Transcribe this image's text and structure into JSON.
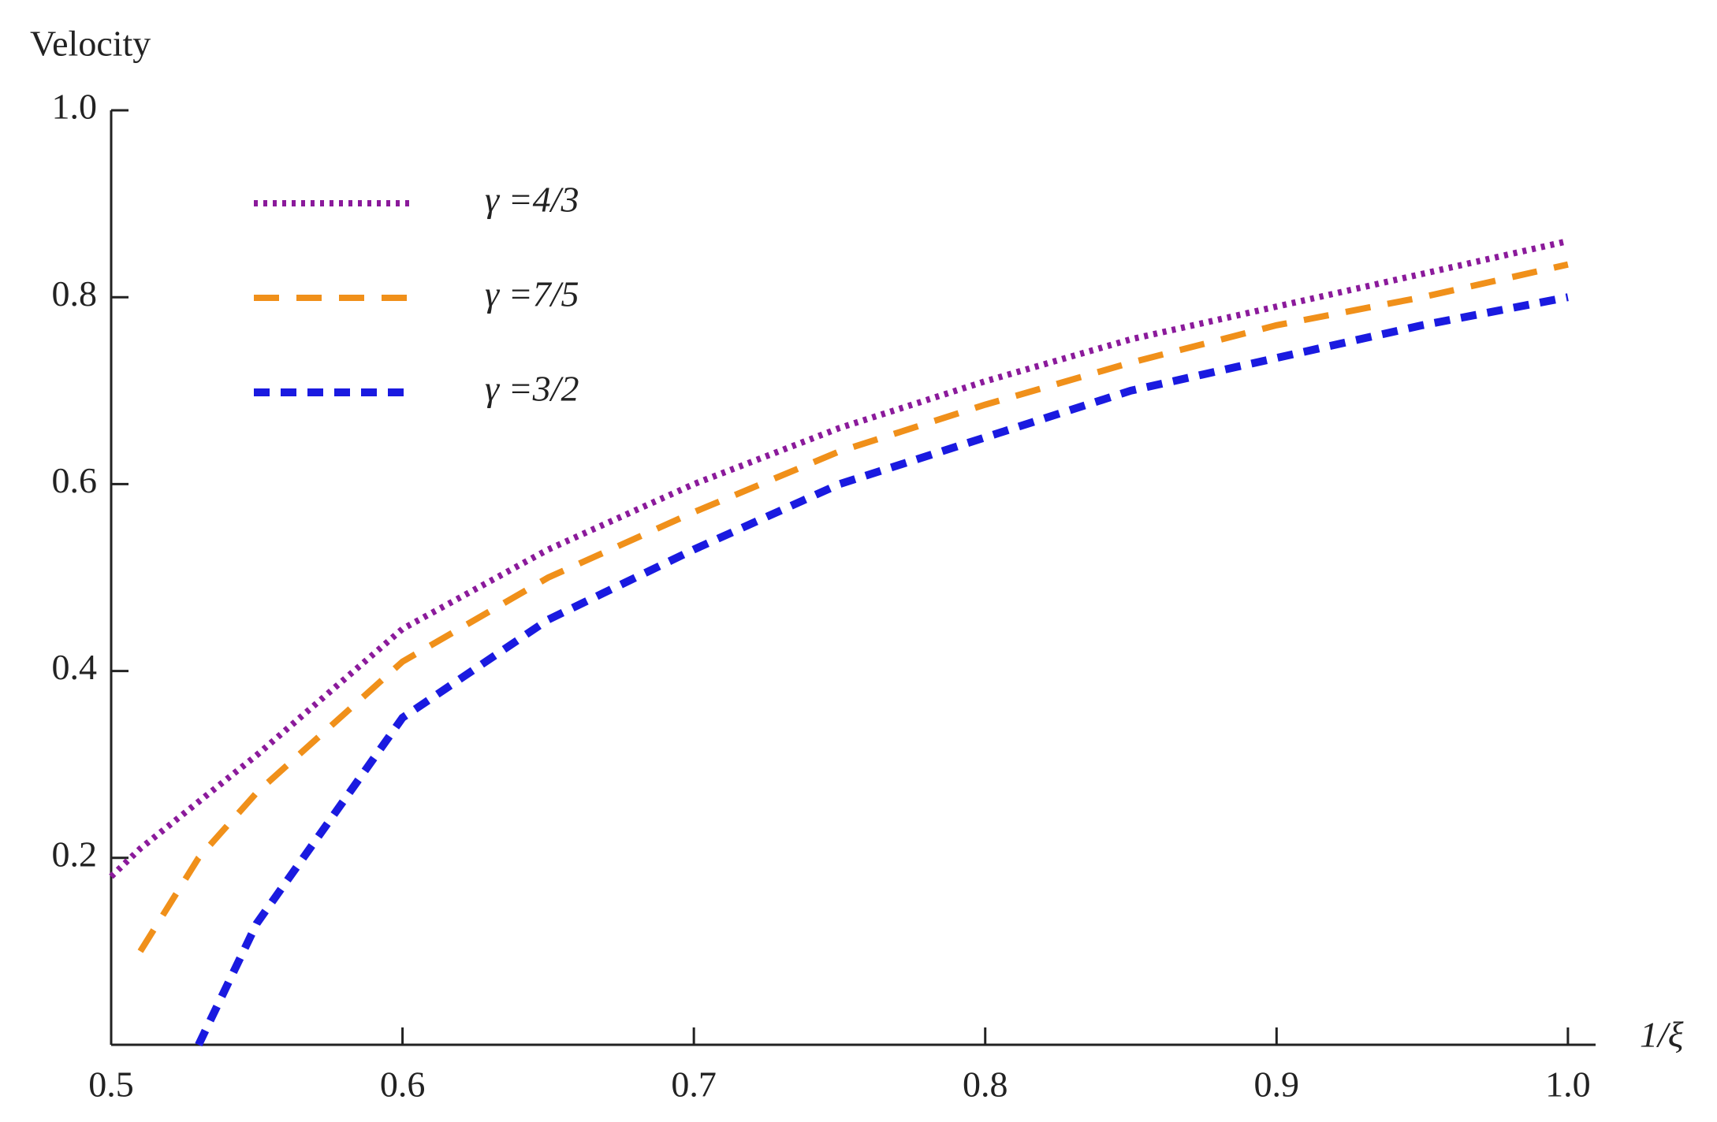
{
  "chart_data": {
    "type": "line",
    "ylabel": "Velocity",
    "xlabel": "1/ξ",
    "x": [
      0.5,
      0.51,
      0.52,
      0.53,
      0.55,
      0.6,
      0.65,
      0.7,
      0.75,
      0.8,
      0.85,
      0.9,
      0.95,
      1.0
    ],
    "series": [
      {
        "name": "γ =4/3",
        "color": "#8b1a9b",
        "dash": "dotted",
        "values": [
          0.18,
          0.21,
          0.235,
          0.26,
          0.31,
          0.445,
          0.53,
          0.6,
          0.66,
          0.71,
          0.755,
          0.79,
          0.825,
          0.86
        ]
      },
      {
        "name": "γ =7/5",
        "color": "#f0901a",
        "dash": "long",
        "values": [
          null,
          0.1,
          0.15,
          0.2,
          0.27,
          0.41,
          0.5,
          0.57,
          0.635,
          0.685,
          0.73,
          0.77,
          0.8,
          0.835
        ]
      },
      {
        "name": "γ =3/2",
        "color": "#1a1ae0",
        "dash": "short",
        "values": [
          null,
          null,
          null,
          0,
          0.13,
          0.35,
          0.455,
          0.53,
          0.6,
          0.65,
          0.7,
          0.735,
          0.77,
          0.8
        ]
      }
    ],
    "xlim": [
      0.5,
      1.0095
    ],
    "ylim": [
      0,
      1
    ],
    "xticks": [
      0.5,
      0.6,
      0.7,
      0.8,
      0.9,
      {
        "value": 1,
        "label": "1.0"
      }
    ],
    "yticks": [
      0.2,
      0.4,
      0.6,
      0.8,
      {
        "value": 1,
        "label": "1.0"
      }
    ],
    "legend": "upper-left"
  }
}
